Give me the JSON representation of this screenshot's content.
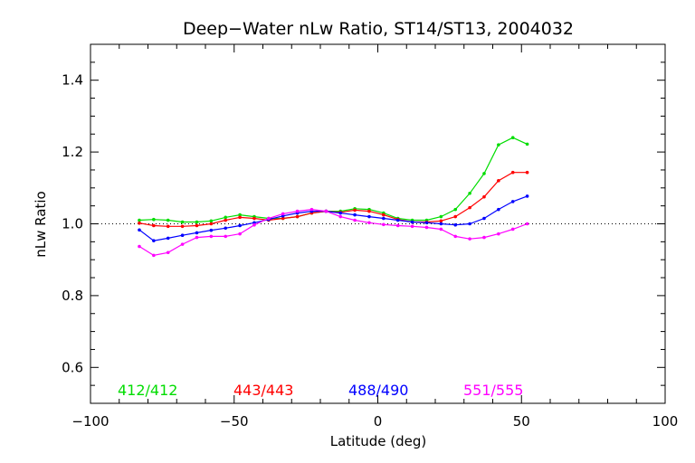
{
  "chart_data": {
    "type": "line",
    "title": "Deep−Water nLw Ratio, ST14/ST13, 2004032",
    "xlabel": "Latitude (deg)",
    "ylabel": "nLw Ratio",
    "xlim": [
      -100,
      100
    ],
    "ylim": [
      0.5,
      1.5
    ],
    "xticks": [
      -100,
      -50,
      0,
      50,
      100
    ],
    "xtick_labels": [
      "−100",
      "−50",
      "0",
      "50",
      "100"
    ],
    "yticks": [
      0.6,
      0.8,
      1.0,
      1.2,
      1.4
    ],
    "ytick_labels": [
      "0.6",
      "0.8",
      "1.0",
      "1.2",
      "1.4"
    ],
    "reference_line": 1.0,
    "grid": false,
    "legend_placement": "bottom",
    "series": [
      {
        "name": "412/412",
        "color": "#00dd00",
        "x": [
          -83,
          -78,
          -73,
          -68,
          -63,
          -58,
          -53,
          -48,
          -43,
          -38,
          -33,
          -28,
          -23,
          -18,
          -13,
          -8,
          -3,
          2,
          7,
          12,
          17,
          22,
          27,
          32,
          37,
          42,
          47,
          52
        ],
        "y": [
          1.01,
          1.012,
          1.01,
          1.005,
          1.005,
          1.008,
          1.018,
          1.025,
          1.02,
          1.015,
          1.015,
          1.02,
          1.03,
          1.035,
          1.035,
          1.042,
          1.04,
          1.03,
          1.015,
          1.01,
          1.01,
          1.02,
          1.04,
          1.085,
          1.14,
          1.22,
          1.24,
          1.222
        ]
      },
      {
        "name": "443/443",
        "color": "#ff0000",
        "x": [
          -83,
          -78,
          -73,
          -68,
          -63,
          -58,
          -53,
          -48,
          -43,
          -38,
          -33,
          -28,
          -23,
          -18,
          -13,
          -8,
          -3,
          2,
          7,
          12,
          17,
          22,
          27,
          32,
          37,
          42,
          47,
          52
        ],
        "y": [
          1.002,
          0.995,
          0.993,
          0.993,
          0.995,
          1.0,
          1.01,
          1.018,
          1.015,
          1.01,
          1.015,
          1.02,
          1.03,
          1.035,
          1.032,
          1.038,
          1.035,
          1.025,
          1.012,
          1.005,
          1.005,
          1.008,
          1.02,
          1.045,
          1.075,
          1.12,
          1.143,
          1.143
        ]
      },
      {
        "name": "488/490",
        "color": "#0000ff",
        "x": [
          -83,
          -78,
          -73,
          -68,
          -63,
          -58,
          -53,
          -48,
          -43,
          -38,
          -33,
          -28,
          -23,
          -18,
          -13,
          -8,
          -3,
          2,
          7,
          12,
          17,
          22,
          27,
          32,
          37,
          42,
          47,
          52
        ],
        "y": [
          0.983,
          0.953,
          0.96,
          0.968,
          0.975,
          0.982,
          0.988,
          0.995,
          1.003,
          1.012,
          1.022,
          1.03,
          1.035,
          1.035,
          1.03,
          1.025,
          1.02,
          1.015,
          1.01,
          1.005,
          1.003,
          1.0,
          0.997,
          1.0,
          1.015,
          1.04,
          1.062,
          1.077
        ]
      },
      {
        "name": "551/555",
        "color": "#ff00ff",
        "x": [
          -83,
          -78,
          -73,
          -68,
          -63,
          -58,
          -53,
          -48,
          -43,
          -38,
          -33,
          -28,
          -23,
          -18,
          -13,
          -8,
          -3,
          2,
          7,
          12,
          17,
          22,
          27,
          32,
          37,
          42,
          47,
          52
        ],
        "y": [
          0.937,
          0.912,
          0.92,
          0.943,
          0.962,
          0.965,
          0.965,
          0.972,
          0.997,
          1.015,
          1.028,
          1.035,
          1.04,
          1.035,
          1.02,
          1.01,
          1.003,
          0.998,
          0.995,
          0.993,
          0.99,
          0.985,
          0.965,
          0.958,
          0.962,
          0.972,
          0.985,
          1.0
        ]
      }
    ]
  }
}
